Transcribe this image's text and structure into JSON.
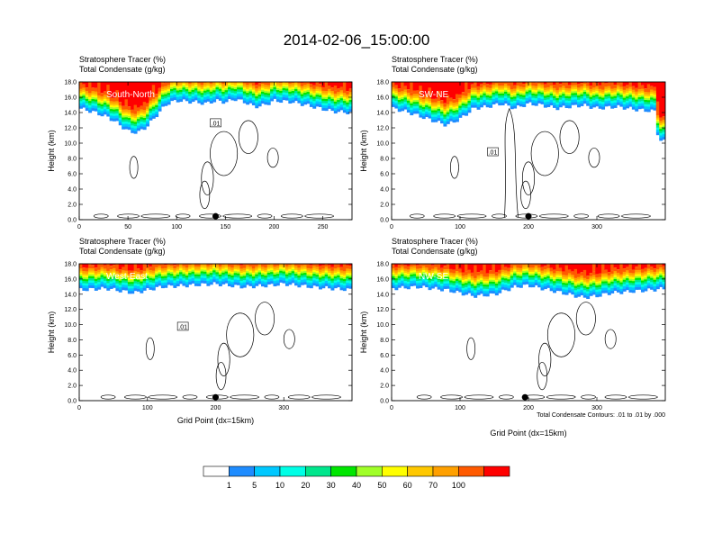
{
  "figure_title": "2014-02-06_15:00:00",
  "contour_note": "Total Condensate Contours: .01 to .01 by .000",
  "colors": {
    "contour_line": "#000000",
    "white_band": "#ffffff"
  },
  "colorbar": {
    "colors": [
      "#ffffff",
      "#1e8cff",
      "#00c8ff",
      "#00ffe6",
      "#00e68c",
      "#00e600",
      "#a0ff28",
      "#ffff00",
      "#ffc800",
      "#ffa000",
      "#ff5a00",
      "#ff0000"
    ],
    "labels": [
      "1",
      "5",
      "10",
      "20",
      "30",
      "40",
      "50",
      "60",
      "70",
      "100"
    ]
  },
  "chart_data": [
    {
      "type": "heatmap",
      "title": "South-North",
      "header_line1": "Stratosphere Tracer   (%)",
      "header_line2": "Total Condensate   (g/kg)",
      "xlabel": "",
      "ylabel": "Height (km)",
      "xlim": [
        0,
        280
      ],
      "ylim": [
        0,
        18
      ],
      "xticks": [
        0,
        50,
        100,
        150,
        200,
        250
      ],
      "yticks": [
        "0.0",
        "2.0",
        "4.0",
        "6.0",
        "8.0",
        "10.0",
        "12.0",
        "14.0",
        "16.0",
        "18.0"
      ],
      "contour_label": ".01",
      "marker_x": 140,
      "tracer_base_km": [
        [
          0,
          14.6
        ],
        [
          15,
          14.1
        ],
        [
          30,
          13.4
        ],
        [
          40,
          12.6
        ],
        [
          50,
          11.6
        ],
        [
          60,
          11.4
        ],
        [
          70,
          12.3
        ],
        [
          80,
          13.8
        ],
        [
          90,
          15.2
        ],
        [
          100,
          15.6
        ],
        [
          120,
          15.4
        ],
        [
          130,
          15.2
        ],
        [
          140,
          15.6
        ],
        [
          150,
          15.4
        ],
        [
          160,
          15.8
        ],
        [
          170,
          15.4
        ],
        [
          180,
          14.8
        ],
        [
          190,
          15.0
        ],
        [
          200,
          15.6
        ],
        [
          220,
          15.4
        ],
        [
          240,
          14.8
        ],
        [
          260,
          14.2
        ],
        [
          280,
          14.0
        ]
      ]
    },
    {
      "type": "heatmap",
      "title": "SW-NE",
      "header_line1": "Stratosphere Tracer   (%)",
      "header_line2": "Total Condensate   (g/kg)",
      "xlabel": "",
      "ylabel": "Height (km)",
      "xlim": [
        0,
        400
      ],
      "ylim": [
        0,
        18
      ],
      "xticks": [
        0,
        100,
        200,
        300
      ],
      "yticks": [
        "0.0",
        "2.0",
        "4.0",
        "6.0",
        "8.0",
        "10.0",
        "12.0",
        "14.0",
        "16.0",
        "18.0"
      ],
      "contour_label": ".01",
      "marker_x": 200,
      "tracer_base_km": [
        [
          0,
          14.6
        ],
        [
          20,
          14.2
        ],
        [
          40,
          13.6
        ],
        [
          60,
          13.0
        ],
        [
          80,
          12.4
        ],
        [
          100,
          13.2
        ],
        [
          120,
          14.6
        ],
        [
          140,
          14.8
        ],
        [
          160,
          15.2
        ],
        [
          180,
          14.6
        ],
        [
          200,
          15.2
        ],
        [
          220,
          15.0
        ],
        [
          240,
          14.6
        ],
        [
          260,
          14.8
        ],
        [
          280,
          15.0
        ],
        [
          300,
          14.6
        ],
        [
          330,
          14.8
        ],
        [
          360,
          14.4
        ],
        [
          385,
          14.2
        ],
        [
          390,
          10.5
        ],
        [
          400,
          10.2
        ]
      ]
    },
    {
      "type": "heatmap",
      "title": "West-East",
      "header_line1": "Stratosphere Tracer   (%)",
      "header_line2": "Total Condensate   (g/kg)",
      "xlabel": "Grid Point (dx=15km)",
      "ylabel": "Height (km)",
      "xlim": [
        0,
        400
      ],
      "ylim": [
        0,
        18
      ],
      "xticks": [
        0,
        100,
        200,
        300
      ],
      "yticks": [
        "0.0",
        "2.0",
        "4.0",
        "6.0",
        "8.0",
        "10.0",
        "12.0",
        "14.0",
        "16.0",
        "18.0"
      ],
      "contour_label": ".01",
      "marker_x": 200,
      "tracer_base_km": [
        [
          0,
          14.6
        ],
        [
          40,
          14.8
        ],
        [
          80,
          14.2
        ],
        [
          120,
          15.0
        ],
        [
          160,
          15.2
        ],
        [
          200,
          15.4
        ],
        [
          240,
          15.0
        ],
        [
          280,
          15.2
        ],
        [
          300,
          15.4
        ],
        [
          340,
          15.0
        ],
        [
          370,
          14.8
        ],
        [
          400,
          14.6
        ]
      ]
    },
    {
      "type": "heatmap",
      "title": "NW-SE",
      "header_line1": "Stratosphere Tracer   (%)",
      "header_line2": "Total Condensate   (g/kg)",
      "xlabel": "Grid Point (dx=15km)",
      "ylabel": "Height (km)",
      "xlim": [
        0,
        400
      ],
      "ylim": [
        0,
        18
      ],
      "xticks": [
        0,
        100,
        200,
        300
      ],
      "yticks": [
        "0.0",
        "2.0",
        "4.0",
        "6.0",
        "8.0",
        "10.0",
        "12.0",
        "14.0",
        "16.0",
        "18.0"
      ],
      "contour_label": "",
      "marker_x": 195,
      "tracer_base_km": [
        [
          0,
          14.8
        ],
        [
          40,
          15.0
        ],
        [
          80,
          14.6
        ],
        [
          120,
          13.8
        ],
        [
          150,
          14.0
        ],
        [
          180,
          15.0
        ],
        [
          200,
          15.2
        ],
        [
          230,
          14.6
        ],
        [
          260,
          14.0
        ],
        [
          280,
          13.6
        ],
        [
          300,
          13.8
        ],
        [
          320,
          14.2
        ],
        [
          350,
          14.4
        ],
        [
          380,
          14.6
        ],
        [
          400,
          14.8
        ]
      ]
    }
  ]
}
